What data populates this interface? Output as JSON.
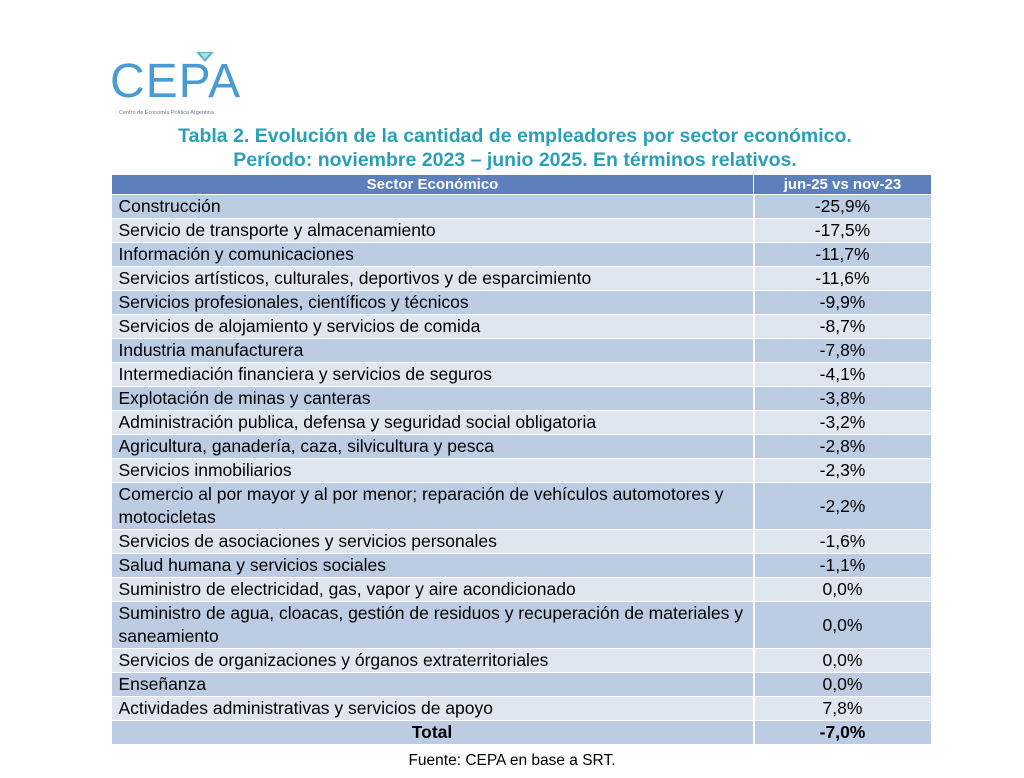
{
  "logo": {
    "text": "CEPA",
    "subtitle": "Centro de Economía Política Argentina",
    "color": "#4a9ad4"
  },
  "title": {
    "line1": "Tabla 2. Evolución de la cantidad de empleadores por sector económico.",
    "line2": "Período: noviembre 2023 – junio 2025. En términos relativos.",
    "color": "#2aa0b6"
  },
  "table": {
    "headers": [
      "Sector Económico",
      "jun-25 vs nov-23"
    ],
    "header_color": "#5b80bb",
    "rows": [
      {
        "sector": "Construcción",
        "value": "-25,9%"
      },
      {
        "sector": "Servicio de transporte y almacenamiento",
        "value": "-17,5%"
      },
      {
        "sector": "Información y comunicaciones",
        "value": "-11,7%"
      },
      {
        "sector": "Servicios artísticos, culturales, deportivos y de esparcimiento",
        "value": "-11,6%"
      },
      {
        "sector": "Servicios profesionales, científicos y técnicos",
        "value": "-9,9%"
      },
      {
        "sector": "Servicios de alojamiento y servicios de comida",
        "value": "-8,7%"
      },
      {
        "sector": "Industria manufacturera",
        "value": "-7,8%"
      },
      {
        "sector": "Intermediación financiera y servicios de seguros",
        "value": "-4,1%"
      },
      {
        "sector": "Explotación de minas y canteras",
        "value": "-3,8%"
      },
      {
        "sector": "Administración publica, defensa y seguridad social obligatoria",
        "value": "-3,2%"
      },
      {
        "sector": "Agricultura, ganadería, caza, silvicultura y pesca",
        "value": "-2,8%"
      },
      {
        "sector": "Servicios inmobiliarios",
        "value": "-2,3%"
      },
      {
        "sector": "Comercio al por mayor y al por menor; reparación de vehículos automotores y motocicletas",
        "value": "-2,2%"
      },
      {
        "sector": "Servicios de asociaciones y servicios personales",
        "value": "-1,6%"
      },
      {
        "sector": "Salud humana y servicios sociales",
        "value": "-1,1%"
      },
      {
        "sector": "Suministro de electricidad, gas, vapor y aire acondicionado",
        "value": "0,0%"
      },
      {
        "sector": "Suministro de agua, cloacas, gestión de residuos y recuperación de materiales y saneamiento",
        "value": "0,0%"
      },
      {
        "sector": "Servicios de organizaciones y órganos extraterritoriales",
        "value": "0,0%"
      },
      {
        "sector": "Enseñanza",
        "value": "0,0%"
      },
      {
        "sector": "Actividades administrativas y servicios de apoyo",
        "value": "7,8%"
      }
    ],
    "total": {
      "label": "Total",
      "value": "-7,0%"
    }
  },
  "source": "Fuente: CEPA en base a SRT."
}
